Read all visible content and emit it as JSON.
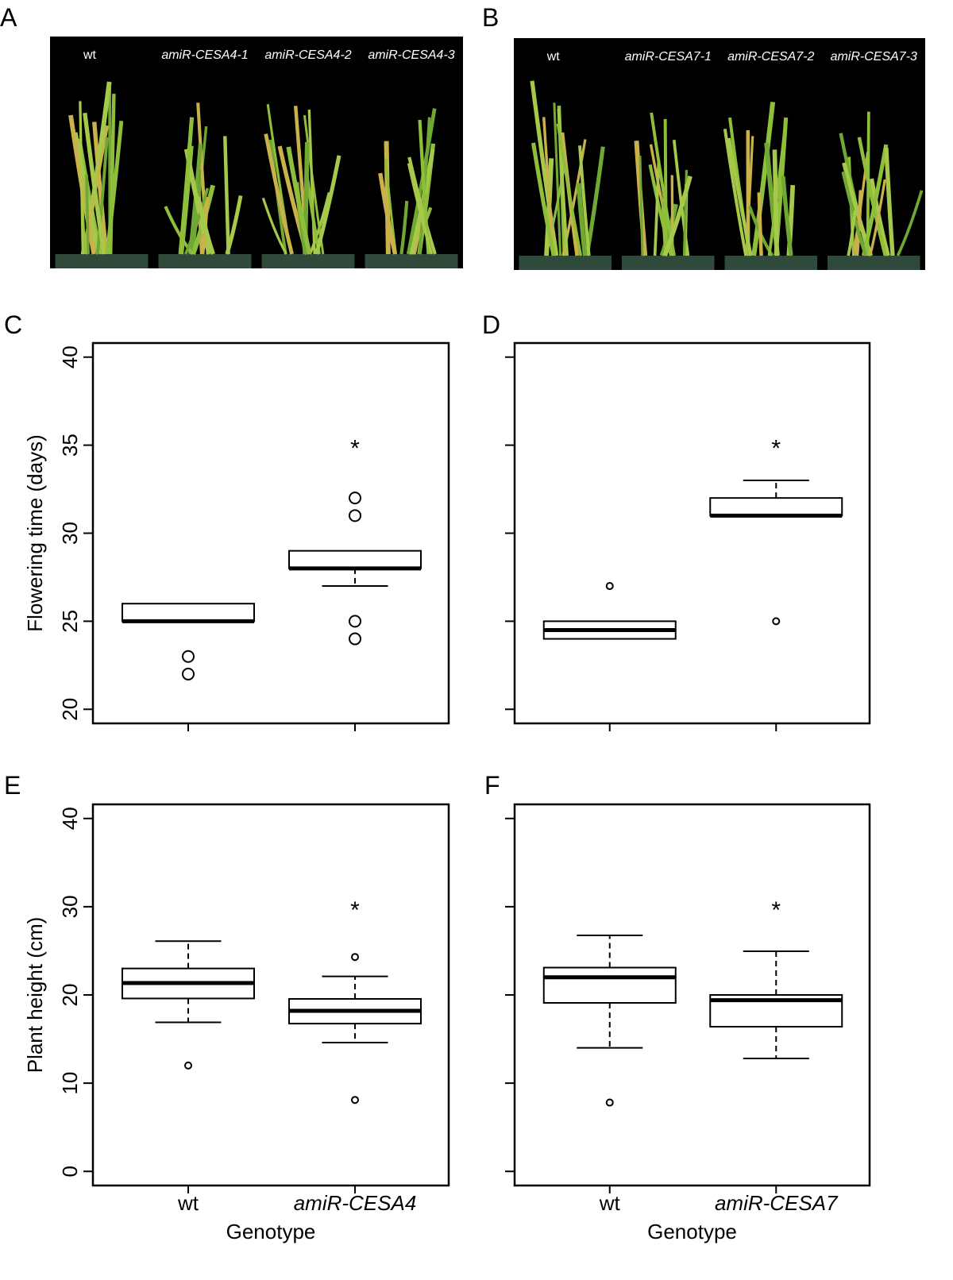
{
  "photos": [
    {
      "panel": "A",
      "captions": [
        "wt",
        "amiR-CESA4-1",
        "amiR-CESA4-2",
        "amiR-CESA4-3"
      ]
    },
    {
      "panel": "B",
      "captions": [
        "wt",
        "amiR-CESA7-1",
        "amiR-CESA7-2",
        "amiR-CESA7-3"
      ]
    }
  ],
  "chart_data": [
    {
      "type": "box",
      "panel": "C",
      "ylabel": "Flowering time (days)",
      "categories": [
        null,
        null
      ],
      "ylim": [
        19.2,
        40.8
      ],
      "yticks": [
        20,
        25,
        30,
        35,
        40
      ],
      "ytick_labels": true,
      "boxes": [
        {
          "whislo": 25,
          "q1": 25,
          "med": 25,
          "q3": 26,
          "whishi": 26,
          "fliers": [
            23,
            22
          ]
        },
        {
          "whislo": 27,
          "q1": 28,
          "med": 28,
          "q3": 29,
          "whishi": 29,
          "fliers": [
            32,
            31,
            25,
            24
          ]
        }
      ],
      "annotation": {
        "text": "*",
        "category": 1,
        "y": 35
      }
    },
    {
      "type": "box",
      "panel": "D",
      "categories": [
        null,
        null
      ],
      "ylim": [
        19.2,
        40.8
      ],
      "yticks": [
        20,
        25,
        30,
        35,
        40
      ],
      "ytick_labels": false,
      "boxes": [
        {
          "whislo": 24,
          "q1": 24,
          "med": 24.5,
          "q3": 25,
          "whishi": 25,
          "fliers": [
            27
          ]
        },
        {
          "whislo": 31,
          "q1": 31,
          "med": 31,
          "q3": 32,
          "whishi": 33,
          "fliers": [
            25
          ]
        }
      ],
      "annotation": {
        "text": "*",
        "category": 1,
        "y": 35
      }
    },
    {
      "type": "box",
      "panel": "E",
      "ylabel": "Plant height (cm)",
      "xlabel": "Genotype",
      "categories": [
        "wt",
        "amiR-CESA4"
      ],
      "ylim": [
        -1.6,
        41.6
      ],
      "yticks": [
        0,
        10,
        20,
        30,
        40
      ],
      "ytick_labels": true,
      "boxes": [
        {
          "whislo": 16.9,
          "q1": 19.6,
          "med": 21.35,
          "q3": 23.0,
          "whishi": 26.1,
          "fliers": [
            12.0
          ]
        },
        {
          "whislo": 14.6,
          "q1": 16.75,
          "med": 18.2,
          "q3": 19.55,
          "whishi": 22.1,
          "fliers": [
            24.3,
            8.1
          ]
        }
      ],
      "annotation": {
        "text": "*",
        "category": 1,
        "y": 30
      }
    },
    {
      "type": "box",
      "panel": "F",
      "xlabel": "Genotype",
      "categories": [
        "wt",
        "amiR-CESA7"
      ],
      "ylim": [
        -1.6,
        41.6
      ],
      "yticks": [
        0,
        10,
        20,
        30,
        40
      ],
      "ytick_labels": false,
      "boxes": [
        {
          "whislo": 14.0,
          "q1": 19.1,
          "med": 22.0,
          "q3": 23.1,
          "whishi": 26.75,
          "fliers": [
            7.8
          ]
        },
        {
          "whislo": 12.8,
          "q1": 16.4,
          "med": 19.4,
          "q3": 20.0,
          "whishi": 24.95,
          "fliers": []
        }
      ],
      "annotation": {
        "text": "*",
        "category": 1,
        "y": 30
      }
    }
  ]
}
